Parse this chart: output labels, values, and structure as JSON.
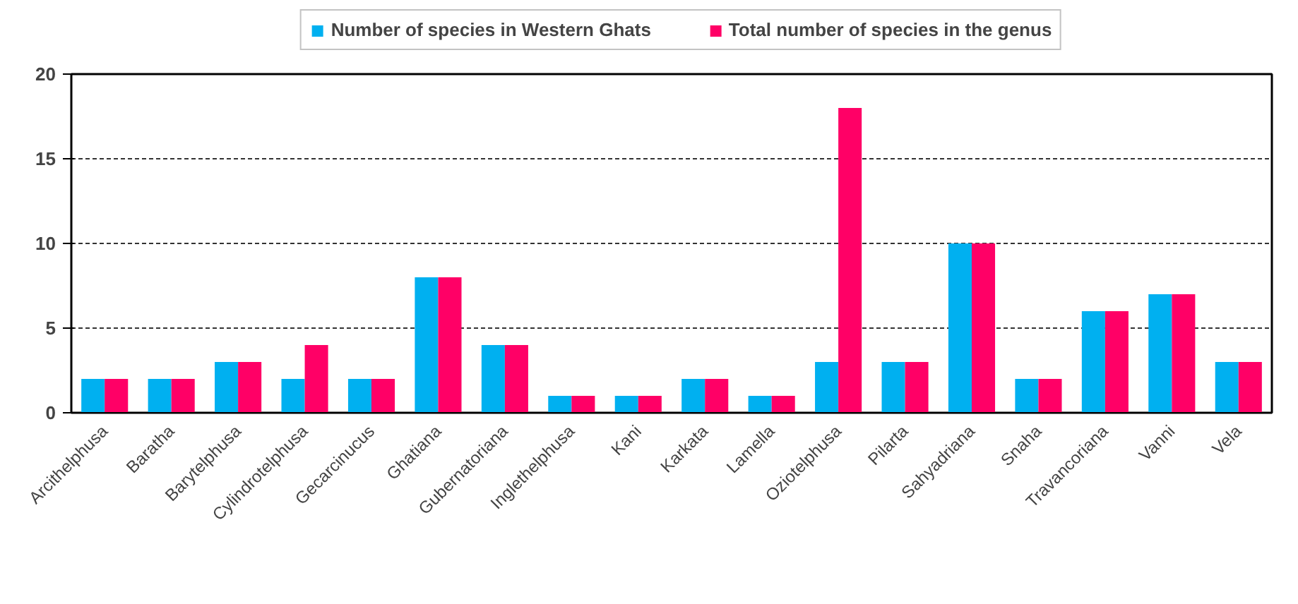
{
  "chart_data": {
    "type": "bar",
    "categories": [
      "Arcithelphusa",
      "Baratha",
      "Barytelphusa",
      "Cylindrotelphusa",
      "Gecarcinucus",
      "Ghatiana",
      "Gubernatoriana",
      "Inglethelphusa",
      "Kani",
      "Karkata",
      "Lamella",
      "Oziotelphusa",
      "Pilarta",
      "Sahyadriana",
      "Snaha",
      "Travancoriana",
      "Vanni",
      "Vela"
    ],
    "series": [
      {
        "name": "Number of species in Western Ghats",
        "color": "#00b0f0",
        "values": [
          2,
          2,
          3,
          2,
          2,
          8,
          4,
          1,
          1,
          2,
          1,
          3,
          3,
          10,
          2,
          6,
          7,
          3
        ]
      },
      {
        "name": "Total number of species in the genus",
        "color": "#ff0066",
        "values": [
          2,
          2,
          3,
          4,
          2,
          8,
          4,
          1,
          1,
          2,
          1,
          18,
          3,
          10,
          2,
          6,
          7,
          3
        ]
      }
    ],
    "ylim": [
      0,
      20
    ],
    "yticks": [
      0,
      5,
      10,
      15,
      20
    ],
    "grid": "y",
    "legend": "top"
  }
}
